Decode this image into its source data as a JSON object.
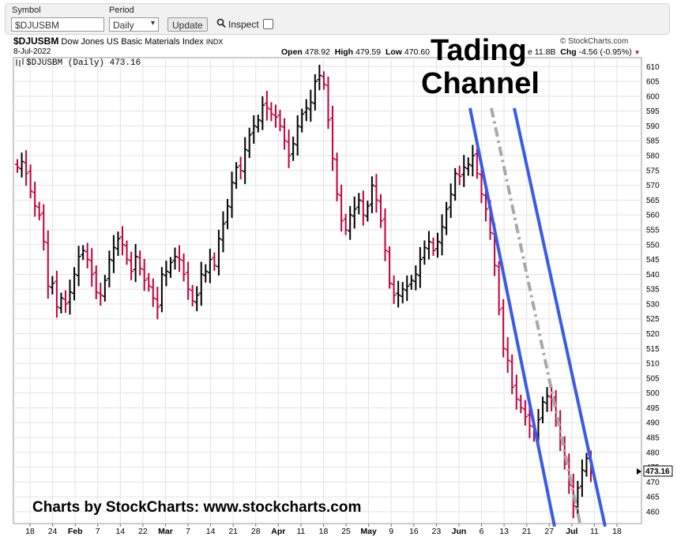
{
  "toolbar": {
    "symbol_label": "Symbol",
    "symbol_value": "$DJUSBM",
    "period_label": "Period",
    "period_value": "Daily",
    "update_label": "Update",
    "inspect_label": "Inspect"
  },
  "header": {
    "ticker": "$DJUSBM",
    "name": "Dow Jones US Basic Materials Index",
    "exchange": "INDX",
    "date": "8-Jul-2022",
    "copyright": "© StockCharts.com",
    "open_label": "Open",
    "open_value": "478.92",
    "high_label": "High",
    "high_value": "479.59",
    "low_label": "Low",
    "low_value": "470.60",
    "vol_tail": "e 11.8B",
    "chg_label": "Chg",
    "chg_value": "-4.56 (-0.95%)",
    "legend": "$DJUSBM (Daily) 473.16",
    "last_price_tag": "473.16"
  },
  "annotations": {
    "channel_title": [
      "Tading",
      "Channel"
    ],
    "footer": "Charts by StockCharts:  www.stockcharts.com"
  },
  "colors": {
    "up": "#000000",
    "down": "#c0003c",
    "channel_line": "#3a5bea",
    "midline": "#a9a9a9"
  },
  "chart_data": {
    "type": "ohlc",
    "title": "$DJUSBM Dow Jones US Basic Materials Index",
    "ylim": [
      456,
      613
    ],
    "yticks": [
      460,
      465,
      470,
      475,
      480,
      485,
      490,
      495,
      500,
      505,
      510,
      515,
      520,
      525,
      530,
      535,
      540,
      545,
      550,
      555,
      560,
      565,
      570,
      575,
      580,
      585,
      590,
      595,
      600,
      605,
      610
    ],
    "x_tick_labels": [
      "18",
      "24",
      "Feb",
      "7",
      "14",
      "22",
      "Mar",
      "7",
      "14",
      "21",
      "28",
      "Apr",
      "11",
      "18",
      "25",
      "May",
      "9",
      "16",
      "23",
      "Jun",
      "6",
      "13",
      "21",
      "27",
      "Jul",
      "11",
      "18"
    ],
    "bold_x_ticks": [
      "Feb",
      "Mar",
      "Apr",
      "May",
      "Jun",
      "Jul"
    ],
    "grid": true,
    "close_series": [
      576,
      578,
      574,
      568,
      563,
      560,
      551,
      536,
      537,
      529,
      532,
      530,
      534,
      540,
      546,
      548,
      545,
      540,
      534,
      533,
      538,
      545,
      549,
      552,
      550,
      545,
      541,
      546,
      542,
      538,
      536,
      532,
      529,
      540,
      541,
      544,
      546,
      545,
      540,
      535,
      531,
      533,
      540,
      541,
      545,
      543,
      552,
      557,
      563,
      571,
      576,
      575,
      582,
      587,
      590,
      592,
      597,
      596,
      594,
      593,
      590,
      585,
      580,
      584,
      590,
      594,
      596,
      598,
      605,
      607,
      604,
      592,
      579,
      567,
      558,
      555,
      560,
      562,
      565,
      560,
      563,
      570,
      565,
      558,
      548,
      537,
      533,
      533,
      535,
      536,
      538,
      540,
      545,
      549,
      551,
      548,
      551,
      556,
      562,
      567,
      574,
      573,
      576,
      577,
      580,
      574,
      567,
      562,
      554,
      543,
      528,
      515,
      511,
      502,
      498,
      495,
      492,
      489,
      486,
      491,
      497,
      499,
      498,
      491,
      484,
      476,
      469,
      462,
      468,
      474,
      478,
      473
    ],
    "trading_channel": {
      "upper": [
        [
          595,
          596
        ],
        [
          702,
          455
        ]
      ],
      "lower": [
        [
          651,
          596
        ],
        [
          766,
          455
        ]
      ],
      "mid": [
        [
          622,
          596
        ],
        [
          735,
          455
        ]
      ]
    }
  }
}
